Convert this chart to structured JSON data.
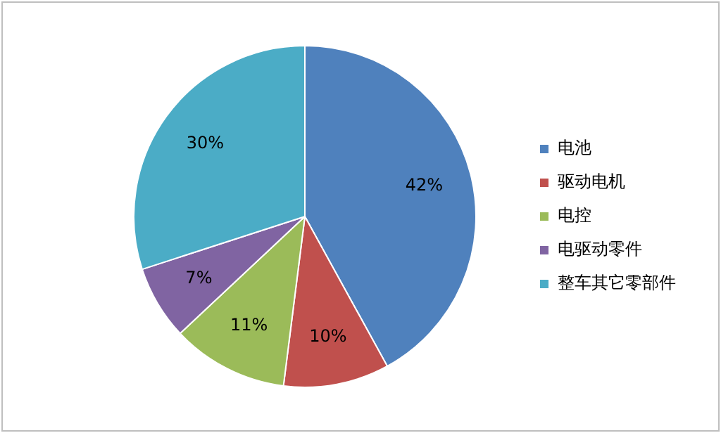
{
  "chart_data": {
    "type": "pie",
    "categories": [
      "电池",
      "驱动电机",
      "电控",
      "电驱动零件",
      "整车其它零部件"
    ],
    "values": [
      42,
      10,
      11,
      7,
      30
    ],
    "colors": [
      "#4f81bd",
      "#c0504d",
      "#9bbb59",
      "#8064a2",
      "#4bacc6"
    ],
    "value_labels": [
      "42%",
      "10%",
      "11%",
      "7%",
      "30%"
    ],
    "legend": "right"
  }
}
